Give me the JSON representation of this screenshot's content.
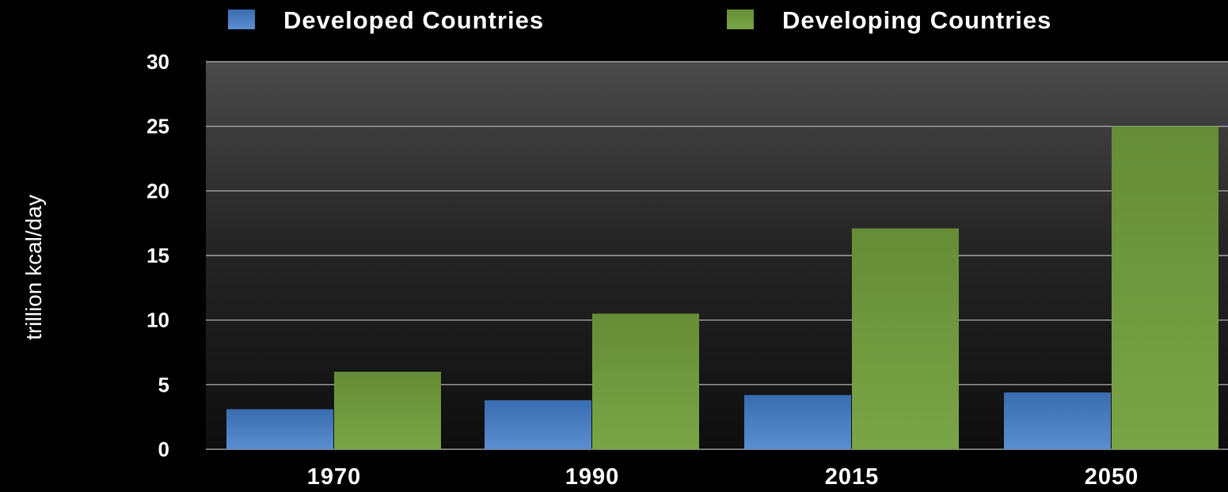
{
  "chart_data": {
    "type": "bar",
    "title": "",
    "xlabel": "",
    "ylabel": "trillion kcal/day",
    "ylim": [
      0,
      30
    ],
    "yticks": [
      "0",
      "5",
      "10",
      "15",
      "20",
      "25",
      "30"
    ],
    "grid": true,
    "legend_position": "top",
    "categories": [
      "1970",
      "1990",
      "2015",
      "2050"
    ],
    "series": [
      {
        "name": "Developed Countries",
        "color": "#3f73b8",
        "values": [
          3.1,
          3.8,
          4.2,
          4.4
        ]
      },
      {
        "name": "Developing Countries",
        "color": "#6f9a3c",
        "values": [
          6.0,
          10.5,
          17.1,
          25.0
        ]
      }
    ]
  }
}
